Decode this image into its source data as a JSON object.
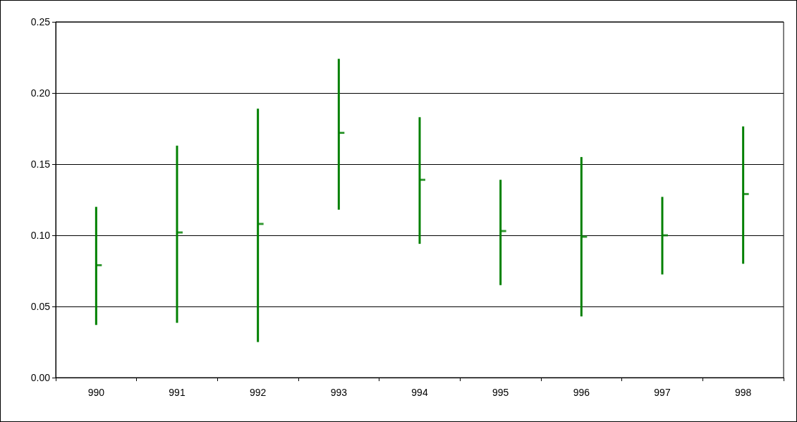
{
  "chart_data": {
    "type": "bar",
    "categories": [
      "990",
      "991",
      "992",
      "993",
      "994",
      "995",
      "996",
      "997",
      "998"
    ],
    "series": [
      {
        "color": "#008000",
        "base": [
          0.037,
          0.0385,
          0.025,
          0.118,
          0.094,
          0.065,
          0.043,
          0.0725,
          0.08
        ],
        "values": [
          0.083,
          0.1245,
          0.164,
          0.106,
          0.089,
          0.074,
          0.112,
          0.0545,
          0.0965
        ]
      },
      {
        "type": "scatter",
        "color": "#008000",
        "marker": "square",
        "x": [
          "990",
          "991",
          "992",
          "993",
          "994",
          "995",
          "996",
          "997",
          "998"
        ],
        "values": [
          0.079,
          0.102,
          0.108,
          0.172,
          0.139,
          0.103,
          0.099,
          0.1,
          0.129
        ]
      }
    ],
    "ylim": [
      0,
      0.25
    ],
    "yticks": [
      {
        "value": 0,
        "label": "0.00"
      },
      {
        "value": 0.05,
        "label": "0.05"
      },
      {
        "value": 0.1,
        "label": "0.10"
      },
      {
        "value": 0.15,
        "label": "0.15"
      },
      {
        "value": 0.2,
        "label": "0.20"
      },
      {
        "value": 0.25,
        "label": "0.25"
      }
    ],
    "grid": "y"
  }
}
